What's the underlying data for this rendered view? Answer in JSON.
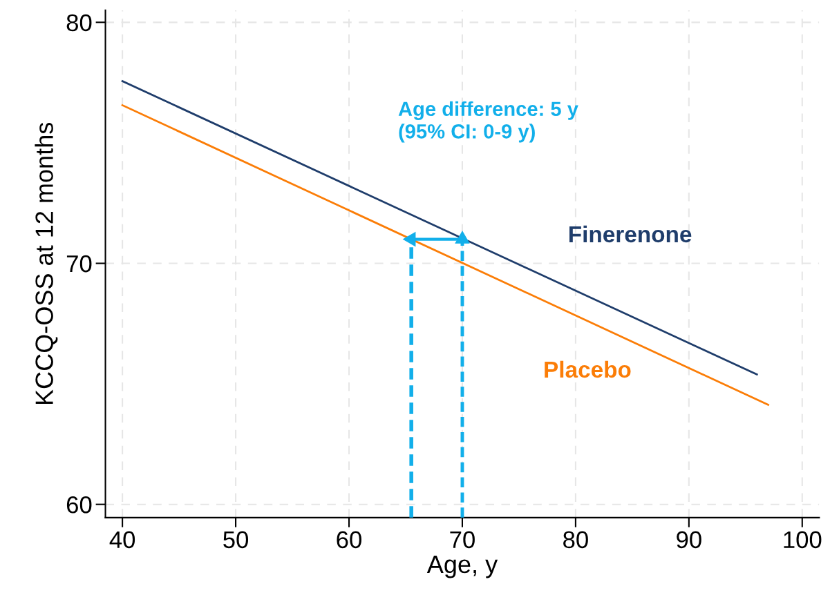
{
  "chart_data": {
    "type": "line",
    "xlabel": "Age, y",
    "ylabel": "KCCQ-OSS at 12 months",
    "xlim": [
      38.5,
      101.5
    ],
    "ylim": [
      59.45,
      80.5
    ],
    "xticks": [
      40,
      50,
      60,
      70,
      80,
      90,
      100
    ],
    "yticks": [
      60,
      70,
      80
    ],
    "grid": true,
    "legend": false,
    "series": [
      {
        "name": "Finerenone",
        "color": "#1f3d6b",
        "x": [
          40,
          96
        ],
        "values": [
          77.56,
          65.39
        ]
      },
      {
        "name": "Placebo",
        "color": "#fb7d07",
        "x": [
          40,
          97
        ],
        "values": [
          76.56,
          64.13
        ]
      },
      {
        "color": "#12afea",
        "x": [
          65.5,
          65.5
        ],
        "values": [
          59.45,
          70.9
        ],
        "line_style": "dashed"
      },
      {
        "color": "#12afea",
        "x": [
          70,
          70
        ],
        "values": [
          59.45,
          71.0
        ],
        "line_style": "dashed",
        "marker": "triangle"
      },
      {
        "color": "#12afea",
        "x": [
          70,
          65.5
        ],
        "values": [
          71.0,
          71.0
        ],
        "line_style": "solid",
        "marker": "triangle"
      }
    ],
    "annotations": [
      "Age difference: 5 y\n(95% CI: 0-9 y)"
    ]
  }
}
